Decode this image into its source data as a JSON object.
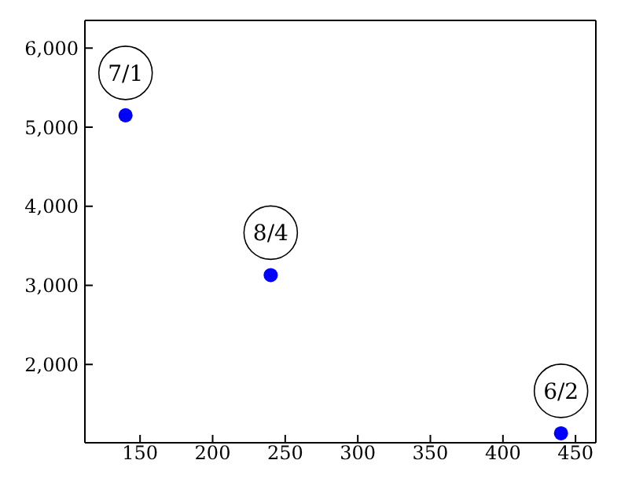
{
  "chart_data": {
    "type": "scatter",
    "x": [
      140,
      240,
      440
    ],
    "values": [
      5150,
      3130,
      1130
    ],
    "color": "#0000ff",
    "marker": "circle",
    "grid": false,
    "xlim": [
      112,
      464
    ],
    "xticks": [
      150,
      200,
      250,
      300,
      350,
      400,
      450
    ],
    "ylim": [
      1010,
      6350
    ],
    "yticks": [
      {
        "value": 2000,
        "label": "2,000"
      },
      {
        "value": 3000,
        "label": "3,000"
      },
      {
        "value": 4000,
        "label": "4,000"
      },
      {
        "value": 5000,
        "label": "5,000"
      },
      {
        "value": 6000,
        "label": "6,000"
      }
    ],
    "annotations": [
      {
        "text": "7/1",
        "x": 140,
        "y": 5150
      },
      {
        "text": "8/4",
        "x": 240,
        "y": 3130
      },
      {
        "text": "6/2",
        "x": 440,
        "y": 1130
      }
    ]
  }
}
